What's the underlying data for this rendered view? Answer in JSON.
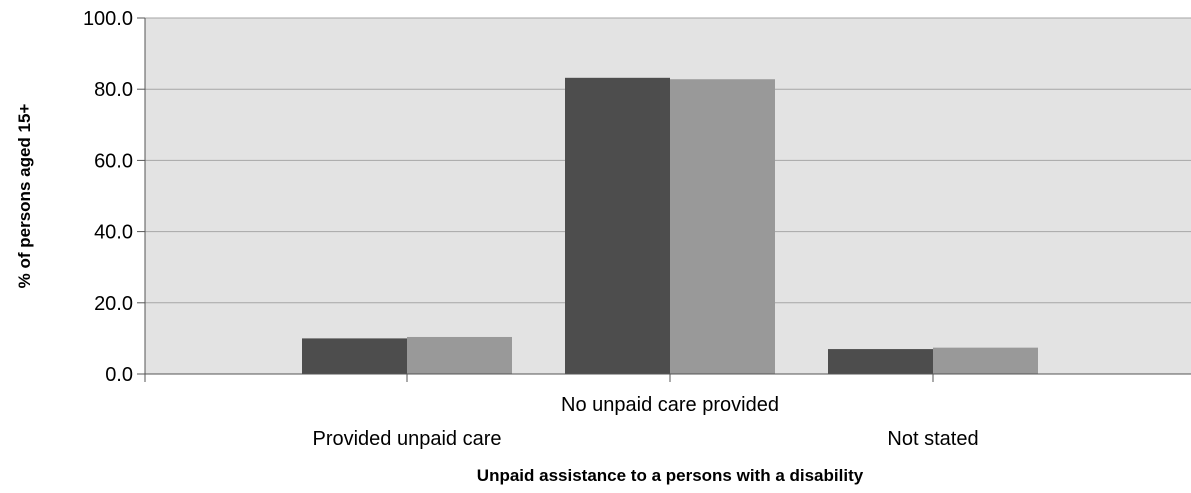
{
  "chart_data": {
    "type": "bar",
    "categories": [
      "Provided unpaid care",
      "No unpaid care provided",
      "Not stated"
    ],
    "series": [
      {
        "values": [
          10.0,
          83.2,
          7.0
        ],
        "color": "#4d4d4d"
      },
      {
        "values": [
          10.4,
          82.8,
          7.4
        ],
        "color": "#999999"
      }
    ],
    "title": "",
    "xlabel": "Unpaid assistance to a persons with a disability",
    "ylabel": "% of persons aged 15+",
    "ylim": [
      0,
      100
    ],
    "yticks": [
      "0.0",
      "20.0",
      "40.0",
      "60.0",
      "80.0",
      "100.0"
    ],
    "grid": true,
    "plot_background": "#e3e3e3",
    "gridline_color": "#a6a6a6"
  }
}
